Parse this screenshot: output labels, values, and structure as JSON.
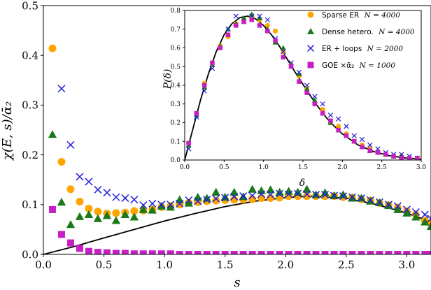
{
  "chart_data": [
    {
      "type": "scatter",
      "xlabel": "s",
      "ylabel": "χ(E, s)/ᾱ₂",
      "xlim": [
        0.0,
        3.2
      ],
      "ylim": [
        0.0,
        0.5
      ],
      "xticks": [
        "0.0",
        "0.5",
        "1.0",
        "1.5",
        "2.0",
        "2.5",
        "3.0"
      ],
      "yticks": [
        "0.0",
        "0.1",
        "0.2",
        "0.3",
        "0.4",
        "0.5"
      ],
      "grid": false,
      "legend": "none",
      "series": [
        {
          "name": "Sparse ER N = 4000",
          "marker": "circle",
          "color": "#ffa500",
          "x": [
            0.075,
            0.15,
            0.225,
            0.3,
            0.375,
            0.45,
            0.525,
            0.6,
            0.675,
            0.75,
            0.825,
            0.9,
            0.975,
            1.05,
            1.125,
            1.2,
            1.275,
            1.35,
            1.425,
            1.5,
            1.575,
            1.65,
            1.725,
            1.8,
            1.875,
            1.95,
            2.025,
            2.1,
            2.175,
            2.25,
            2.325,
            2.4,
            2.475,
            2.55,
            2.625,
            2.7,
            2.775,
            2.85,
            2.925,
            3.0,
            3.075,
            3.15,
            3.2
          ],
          "y": [
            0.414,
            0.186,
            0.131,
            0.106,
            0.092,
            0.086,
            0.082,
            0.083,
            0.084,
            0.087,
            0.088,
            0.09,
            0.095,
            0.097,
            0.1,
            0.104,
            0.105,
            0.107,
            0.108,
            0.109,
            0.11,
            0.11,
            0.111,
            0.113,
            0.113,
            0.114,
            0.117,
            0.117,
            0.117,
            0.117,
            0.117,
            0.117,
            0.115,
            0.114,
            0.111,
            0.108,
            0.103,
            0.099,
            0.094,
            0.087,
            0.08,
            0.068,
            0.062
          ]
        },
        {
          "name": "Dense hetero. N = 4000",
          "marker": "triangle",
          "color": "#1a7a1a",
          "x": [
            0.075,
            0.15,
            0.225,
            0.3,
            0.375,
            0.45,
            0.525,
            0.6,
            0.675,
            0.75,
            0.825,
            0.9,
            0.975,
            1.05,
            1.125,
            1.2,
            1.275,
            1.35,
            1.425,
            1.5,
            1.575,
            1.65,
            1.725,
            1.8,
            1.875,
            1.95,
            2.025,
            2.1,
            2.175,
            2.25,
            2.325,
            2.4,
            2.475,
            2.55,
            2.625,
            2.7,
            2.775,
            2.85,
            2.925,
            3.0,
            3.075,
            3.15,
            3.2
          ],
          "y": [
            0.241,
            0.105,
            0.06,
            0.076,
            0.08,
            0.072,
            0.078,
            0.068,
            0.08,
            0.075,
            0.09,
            0.089,
            0.097,
            0.095,
            0.11,
            0.103,
            0.115,
            0.113,
            0.125,
            0.115,
            0.125,
            0.116,
            0.131,
            0.128,
            0.13,
            0.125,
            0.127,
            0.125,
            0.131,
            0.12,
            0.124,
            0.118,
            0.12,
            0.113,
            0.113,
            0.107,
            0.104,
            0.098,
            0.09,
            0.083,
            0.075,
            0.065,
            0.056
          ]
        },
        {
          "name": "ER + loops N = 2000",
          "marker": "cross",
          "color": "#1f1fd6",
          "x": [
            0.15,
            0.225,
            0.3,
            0.375,
            0.45,
            0.525,
            0.6,
            0.675,
            0.75,
            0.825,
            0.9,
            0.975,
            1.05,
            1.125,
            1.2,
            1.275,
            1.35,
            1.425,
            1.5,
            1.575,
            1.65,
            1.725,
            1.8,
            1.875,
            1.95,
            2.025,
            2.1,
            2.175,
            2.25,
            2.325,
            2.4,
            2.475,
            2.55,
            2.625,
            2.7,
            2.775,
            2.85,
            2.925,
            3.0,
            3.075,
            3.15,
            3.2
          ],
          "y": [
            0.333,
            0.22,
            0.156,
            0.146,
            0.13,
            0.124,
            0.115,
            0.113,
            0.11,
            0.099,
            0.102,
            0.1,
            0.1,
            0.102,
            0.109,
            0.107,
            0.11,
            0.112,
            0.114,
            0.116,
            0.117,
            0.118,
            0.121,
            0.12,
            0.122,
            0.121,
            0.122,
            0.121,
            0.12,
            0.12,
            0.118,
            0.117,
            0.115,
            0.113,
            0.109,
            0.105,
            0.1,
            0.097,
            0.09,
            0.085,
            0.08,
            0.072
          ]
        },
        {
          "name": "GOE ×ᾱ₂ N = 1000",
          "marker": "square",
          "color": "#c61fc6",
          "x": [
            0.075,
            0.15,
            0.225,
            0.3,
            0.375,
            0.45,
            0.525,
            0.6,
            0.675,
            0.75,
            0.825,
            0.9,
            0.975,
            1.05,
            1.125,
            1.2,
            1.275,
            1.35,
            1.425,
            1.5,
            1.575,
            1.65,
            1.725,
            1.8,
            1.875,
            1.95,
            2.025,
            2.1,
            2.175,
            2.25,
            2.325,
            2.4,
            2.475,
            2.55,
            2.625,
            2.7,
            2.775,
            2.85,
            2.925,
            3.0,
            3.075,
            3.15,
            3.2
          ],
          "y": [
            0.09,
            0.04,
            0.023,
            0.012,
            0.006,
            0.004,
            0.003,
            0.002,
            0.002,
            0.001,
            0.001,
            0.001,
            0.001,
            0.001,
            0.0,
            0.0,
            0.0,
            0.0,
            0.0,
            0.0,
            0.0,
            0.0,
            0.0,
            0.0,
            0.0,
            0.0,
            0.0,
            0.0,
            0.0,
            0.0,
            0.0,
            0.0,
            0.0,
            0.0,
            0.0,
            0.0,
            0.0,
            0.0,
            0.0,
            0.0,
            0.0,
            0.0,
            0.0
          ]
        }
      ],
      "curve": {
        "color": "#000000",
        "x": [
          0.0,
          0.25,
          0.5,
          0.75,
          1.0,
          1.25,
          1.5,
          1.75,
          2.0,
          2.2,
          2.5,
          2.75,
          3.0,
          3.2
        ],
        "y": [
          0.0,
          0.0155,
          0.033,
          0.05,
          0.067,
          0.082,
          0.096,
          0.107,
          0.114,
          0.117,
          0.113,
          0.1,
          0.083,
          0.065
        ]
      }
    },
    {
      "type": "scatter",
      "xlabel": "δ",
      "ylabel": "P(δ)",
      "xlim": [
        0.0,
        3.0
      ],
      "ylim": [
        0.0,
        0.8
      ],
      "xticks": [
        "0.0",
        "0.5",
        "1.0",
        "1.5",
        "2.0",
        "2.5",
        "3.0"
      ],
      "yticks": [
        "0.0",
        "0.1",
        "0.2",
        "0.3",
        "0.4",
        "0.5",
        "0.6",
        "0.7",
        "0.8"
      ],
      "grid": false,
      "legend": "upper-right",
      "series": [
        {
          "name": "Sparse ER N = 4000",
          "marker": "circle",
          "color": "#ffa500",
          "x": [
            0.05,
            0.15,
            0.25,
            0.35,
            0.45,
            0.55,
            0.65,
            0.75,
            0.85,
            0.95,
            1.05,
            1.15,
            1.25,
            1.35,
            1.45,
            1.55,
            1.65,
            1.75,
            1.85,
            1.95,
            2.05,
            2.15,
            2.25,
            2.35,
            2.45,
            2.55,
            2.65,
            2.75,
            2.85,
            2.95
          ],
          "y": [
            0.09,
            0.25,
            0.41,
            0.52,
            0.61,
            0.66,
            0.73,
            0.75,
            0.76,
            0.75,
            0.72,
            0.69,
            0.58,
            0.51,
            0.45,
            0.38,
            0.3,
            0.27,
            0.2,
            0.18,
            0.14,
            0.1,
            0.08,
            0.06,
            0.04,
            0.03,
            0.02,
            0.02,
            0.01,
            0.01
          ]
        },
        {
          "name": "Dense hetero. N = 4000",
          "marker": "triangle",
          "color": "#1a7a1a",
          "x": [
            0.05,
            0.15,
            0.25,
            0.35,
            0.45,
            0.55,
            0.65,
            0.75,
            0.85,
            0.95,
            1.05,
            1.15,
            1.25,
            1.35,
            1.45,
            1.55,
            1.65,
            1.75,
            1.85,
            1.95,
            2.05,
            2.15,
            2.25,
            2.35,
            2.45,
            2.55,
            2.65,
            2.75,
            2.85,
            2.95
          ],
          "y": [
            0.08,
            0.24,
            0.39,
            0.51,
            0.61,
            0.7,
            0.73,
            0.76,
            0.78,
            0.76,
            0.7,
            0.63,
            0.6,
            0.5,
            0.46,
            0.38,
            0.32,
            0.25,
            0.2,
            0.16,
            0.13,
            0.1,
            0.07,
            0.05,
            0.04,
            0.03,
            0.02,
            0.02,
            0.01,
            0.01
          ]
        },
        {
          "name": "ER + loops N = 2000",
          "marker": "cross",
          "color": "#1f1fd6",
          "x": [
            0.05,
            0.15,
            0.25,
            0.35,
            0.45,
            0.55,
            0.65,
            0.75,
            0.85,
            0.95,
            1.05,
            1.15,
            1.25,
            1.35,
            1.45,
            1.55,
            1.65,
            1.75,
            1.85,
            1.95,
            2.05,
            2.15,
            2.25,
            2.35,
            2.45,
            2.55,
            2.65,
            2.75,
            2.85,
            2.95
          ],
          "y": [
            0.06,
            0.23,
            0.37,
            0.49,
            0.6,
            0.7,
            0.77,
            0.74,
            0.77,
            0.77,
            0.75,
            0.65,
            0.58,
            0.52,
            0.47,
            0.4,
            0.34,
            0.3,
            0.24,
            0.22,
            0.18,
            0.13,
            0.11,
            0.08,
            0.06,
            0.04,
            0.03,
            0.03,
            0.02,
            0.01
          ]
        },
        {
          "name": "GOE ×ᾱ₂ N = 1000",
          "marker": "square",
          "color": "#c61fc6",
          "x": [
            0.05,
            0.15,
            0.25,
            0.35,
            0.45,
            0.55,
            0.65,
            0.75,
            0.85,
            0.95,
            1.05,
            1.15,
            1.25,
            1.35,
            1.45,
            1.55,
            1.65,
            1.75,
            1.85,
            1.95,
            2.05,
            2.15,
            2.25,
            2.35,
            2.45,
            2.55,
            2.65,
            2.75,
            2.85,
            2.95
          ],
          "y": [
            0.09,
            0.25,
            0.4,
            0.52,
            0.6,
            0.67,
            0.72,
            0.74,
            0.75,
            0.72,
            0.69,
            0.64,
            0.55,
            0.5,
            0.42,
            0.36,
            0.3,
            0.25,
            0.21,
            0.16,
            0.13,
            0.1,
            0.07,
            0.05,
            0.04,
            0.03,
            0.02,
            0.01,
            0.01,
            0.01
          ]
        }
      ],
      "curve": {
        "color": "#000000",
        "x": [
          0.0,
          0.1,
          0.2,
          0.3,
          0.4,
          0.5,
          0.6,
          0.7,
          0.8,
          0.9,
          1.0,
          1.1,
          1.2,
          1.3,
          1.4,
          1.5,
          1.6,
          1.7,
          1.8,
          1.9,
          2.0,
          2.2,
          2.4,
          2.6,
          2.8,
          3.0
        ],
        "y": [
          0.0,
          0.16,
          0.32,
          0.46,
          0.58,
          0.67,
          0.73,
          0.762,
          0.77,
          0.755,
          0.72,
          0.67,
          0.61,
          0.54,
          0.47,
          0.405,
          0.34,
          0.28,
          0.225,
          0.18,
          0.14,
          0.08,
          0.045,
          0.023,
          0.011,
          0.005
        ]
      }
    }
  ],
  "legend": {
    "entries": [
      {
        "label": "Sparse ER",
        "math": "N = 4000"
      },
      {
        "label": "Dense hetero.",
        "math": "N = 4000"
      },
      {
        "label": "ER + loops",
        "math": "N = 2000"
      },
      {
        "label": "GOE ×ᾱ₂",
        "math": "N = 1000"
      }
    ]
  }
}
